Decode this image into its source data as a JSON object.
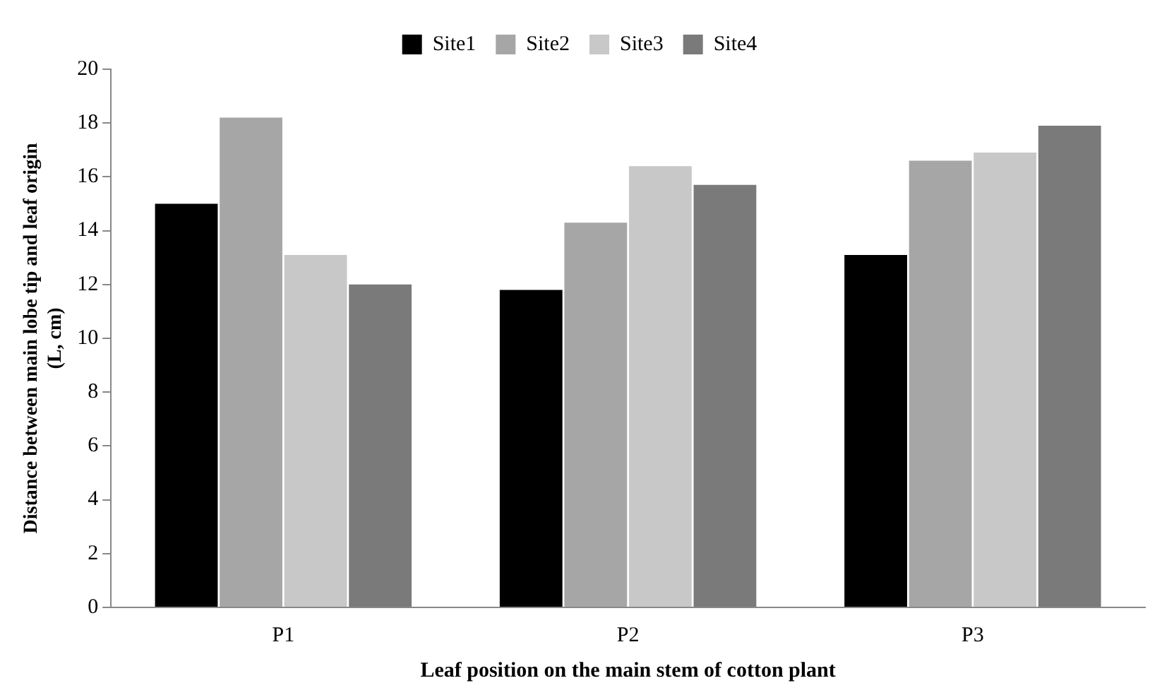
{
  "chart_data": {
    "type": "bar",
    "xlabel": "Leaf position on the main stem of cotton plant",
    "ylabel": "Distance between main lobe tip and leaf origin (L, cm)",
    "categories": [
      "P1",
      "P2",
      "P3"
    ],
    "series": [
      {
        "name": "Site1",
        "color": "#000000",
        "values": [
          15.0,
          11.8,
          13.1
        ]
      },
      {
        "name": "Site2",
        "color": "#a6a6a6",
        "values": [
          18.2,
          14.3,
          16.6
        ]
      },
      {
        "name": "Site3",
        "color": "#c8c8c8",
        "values": [
          13.1,
          16.4,
          16.9
        ]
      },
      {
        "name": "Site4",
        "color": "#7a7a7a",
        "values": [
          12.0,
          15.7,
          17.9
        ]
      }
    ],
    "ylim": [
      0,
      20
    ],
    "yticks": [
      0,
      2,
      4,
      6,
      8,
      10,
      12,
      14,
      16,
      18,
      20
    ],
    "grid": false,
    "legend": "top"
  }
}
